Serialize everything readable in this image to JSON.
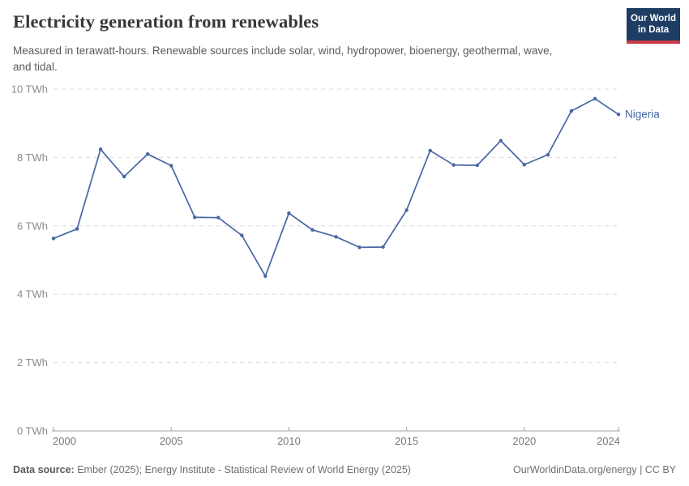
{
  "header": {
    "title": "Electricity generation from renewables",
    "subtitle": "Measured in terawatt-hours. Renewable sources include solar, wind, hydropower, bioenergy, geothermal, wave, and tidal.",
    "logo": {
      "line1": "Our World",
      "line2": "in Data"
    }
  },
  "chart_data": {
    "type": "line",
    "title": "Electricity generation from renewables",
    "unit": "TWh",
    "ytick_suffix": " TWh",
    "yticks": [
      0,
      2,
      4,
      6,
      8,
      10
    ],
    "ylim": [
      0,
      10
    ],
    "xticks": [
      2000,
      2005,
      2010,
      2015,
      2020,
      2024
    ],
    "xlim": [
      2000,
      2024
    ],
    "grid": "horizontal-dashed",
    "legend_position": "end-of-line",
    "x": [
      2000,
      2001,
      2002,
      2003,
      2004,
      2005,
      2006,
      2007,
      2008,
      2009,
      2010,
      2011,
      2012,
      2013,
      2014,
      2015,
      2016,
      2017,
      2018,
      2019,
      2020,
      2021,
      2022,
      2023,
      2024
    ],
    "series": [
      {
        "name": "Nigeria",
        "color": "#4766a3",
        "values": [
          5.63,
          5.91,
          8.24,
          7.44,
          8.1,
          7.76,
          6.25,
          6.24,
          5.72,
          4.53,
          6.37,
          5.88,
          5.68,
          5.37,
          5.38,
          6.46,
          8.2,
          7.78,
          7.77,
          8.49,
          7.79,
          8.08,
          9.36,
          9.72,
          9.26
        ]
      }
    ]
  },
  "footer": {
    "datasource_label": "Data source:",
    "datasource_text": "Ember (2025); Energy Institute - Statistical Review of World Energy (2025)",
    "right_text": "OurWorldinData.org/energy | CC BY"
  },
  "colors": {
    "grid": "#dcdcdc",
    "axis": "#a3a3a3",
    "ytick_text": "#8b8b8b",
    "xtick_text": "#757575"
  }
}
